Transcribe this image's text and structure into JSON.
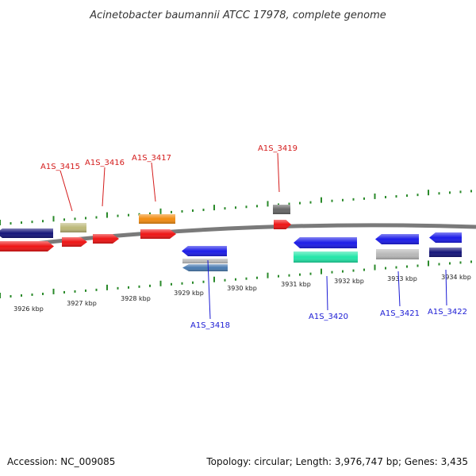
{
  "title": "Acinetobacter baumannii ATCC 17978, complete genome",
  "footer": {
    "accession": "Accession: NC_009085",
    "summary": "Topology: circular; Length: 3,976,747 bp; Genes: 3,435"
  },
  "colors": {
    "backbone": "#7a7a7a",
    "tick": "#2a8a2a",
    "label_forward": "#d41b1b",
    "label_reverse": "#1a1ad4",
    "navy": "#15157a",
    "khaki": "#bcb878",
    "red": "#ee1515",
    "orange": "#f28c12",
    "blue": "#1c1ce8",
    "silver": "#b8b8b8",
    "steel": "#4a7bb0",
    "mint": "#22e6a8",
    "darkgray": "#666666"
  },
  "scale": {
    "kbp_labels": [
      "3926 kbp",
      "3927 kbp",
      "3928 kbp",
      "3929 kbp",
      "3930 kbp",
      "3931 kbp",
      "3932 kbp",
      "3933 kbp",
      "3934 kbp"
    ]
  },
  "gene_labels": {
    "forward": [
      "A1S_3415",
      "A1S_3416",
      "A1S_3417",
      "A1S_3419"
    ],
    "reverse": [
      "A1S_3418",
      "A1S_3420",
      "A1S_3421",
      "A1S_3422"
    ]
  }
}
